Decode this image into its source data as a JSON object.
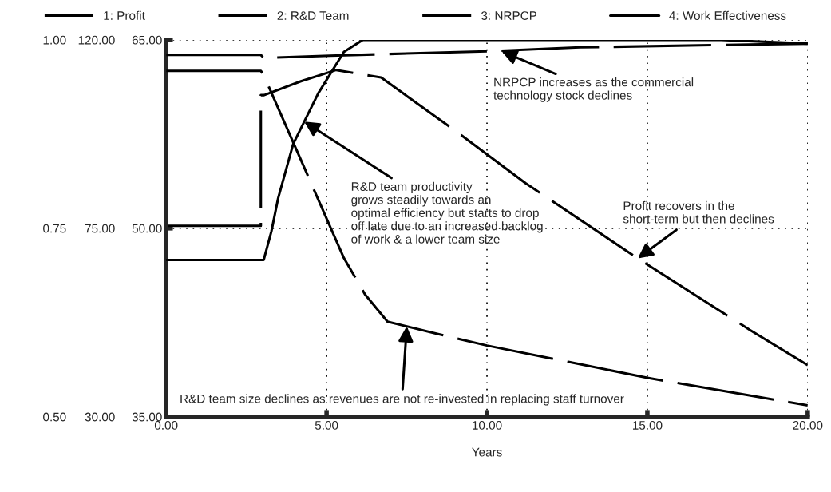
{
  "chart_data": {
    "type": "line",
    "xlabel": "Years",
    "legend": "top",
    "grid": true,
    "xlim": [
      0,
      20
    ],
    "xticks": [
      {
        "value": 0,
        "label": "0.00"
      },
      {
        "value": 5,
        "label": "5.00"
      },
      {
        "value": 10,
        "label": "10.00"
      },
      {
        "value": 15,
        "label": "15.00"
      },
      {
        "value": 20,
        "label": "20.00"
      }
    ],
    "ylim": [
      35,
      65
    ],
    "yticks": [
      {
        "value": 35,
        "label": "35.00"
      },
      {
        "value": 50,
        "label": "50.00"
      },
      {
        "value": 65,
        "label": "65.00"
      }
    ],
    "y2lim": [
      30,
      120
    ],
    "y2ticks": [
      {
        "value": 30,
        "label": "30.00"
      },
      {
        "value": 75,
        "label": "75.00"
      },
      {
        "value": 120,
        "label": "120.00"
      }
    ],
    "y3lim": [
      0.5,
      1.0
    ],
    "y3ticks": [
      {
        "value": 0.5,
        "label": "0.50"
      },
      {
        "value": 0.75,
        "label": "0.75"
      },
      {
        "value": 1.0,
        "label": "1.00"
      }
    ],
    "series": [
      {
        "name": "1: Profit",
        "color": "#000000",
        "line_style": "dashed",
        "x": [
          0,
          2.95,
          2.95,
          3.05,
          4.2,
          5.3,
          6.7,
          9.1,
          11.2,
          14.7,
          18.2,
          20
        ],
        "values": [
          50.2,
          50.2,
          60.6,
          60.6,
          61.7,
          62.6,
          62.0,
          57.6,
          53.6,
          47.6,
          41.9,
          39.1
        ]
      },
      {
        "name": "2: R&D Team",
        "color": "#000000",
        "line_style": "dashed",
        "axis": "y2",
        "x": [
          0,
          2.95,
          3.05,
          5.54,
          6.2,
          6.9,
          8.45,
          10,
          15,
          20
        ],
        "values": [
          112.6,
          112.6,
          111.4,
          67.9,
          59.2,
          52.7,
          49.8,
          47.0,
          39.3,
          32.7
        ]
      },
      {
        "name": "3: NRPCP",
        "color": "#000000",
        "line_style": "dashed",
        "axis": "y3",
        "x": [
          0,
          2.95,
          3.05,
          5.1,
          10.1,
          12.9,
          17,
          20
        ],
        "values": [
          0.98,
          0.98,
          0.976,
          0.979,
          0.985,
          0.99,
          0.993,
          0.995
        ]
      },
      {
        "name": "4: Work Effectiveness",
        "color": "#000000",
        "line_style": "solid",
        "axis": "y3",
        "x": [
          0,
          2.95,
          3.04,
          3.28,
          3.49,
          3.96,
          4.74,
          5.54,
          6.13,
          17.3,
          20
        ],
        "values": [
          0.708,
          0.708,
          0.708,
          0.746,
          0.79,
          0.862,
          0.929,
          0.984,
          1.0,
          1.0,
          0.995
        ]
      }
    ],
    "annotations": [
      {
        "text": "NRPCP increases as the commercial\ntechnology stock declines",
        "x": 10.45,
        "y": 64.1
      },
      {
        "text": "R&D team productivity\ngrows steadily towards an\noptimal efficiency but starts to drop\noff late due to an increased backlog\nof work & a lower team size",
        "x": 4.3,
        "y": 58.5
      },
      {
        "text": "Profit recovers in the\nshort-term but then declines",
        "x": 14.7,
        "y": 47.6
      },
      {
        "text": "R&D team size declines as revenues are not re-invested in replacing staff turnover",
        "x": 7.5,
        "y": 42.2
      }
    ]
  }
}
